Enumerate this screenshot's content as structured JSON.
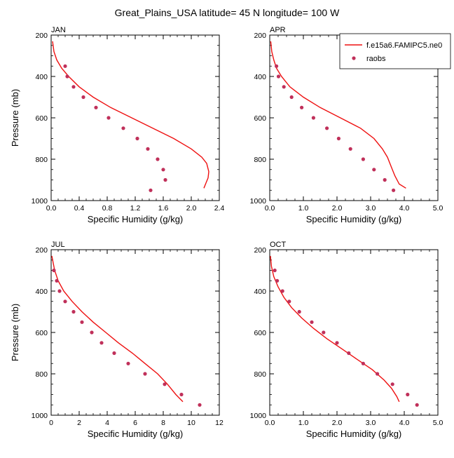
{
  "figure": {
    "title": "Great_Plains_USA  latitude= 45 N longitude= 100 W"
  },
  "legend": {
    "model_label": "f.e15a6.FAMIPC5.ne0",
    "obs_label": "raobs",
    "model_color": "#ee1111",
    "obs_color": "#c0305a"
  },
  "chart_data": [
    {
      "type": "line",
      "title": "JAN",
      "xlabel": "Specific Humidity (g/kg)",
      "ylabel": "Pressure (mb)",
      "xlim": [
        0,
        2.4
      ],
      "ylim": [
        1000,
        200
      ],
      "y_inverted": true,
      "xticks": [
        "0.0",
        "0.4",
        "0.8",
        "1.2",
        "1.6",
        "2.0",
        "2.4"
      ],
      "yticks": [
        "200",
        "400",
        "600",
        "800",
        "1000"
      ],
      "legend": false,
      "series": [
        {
          "name": "f.e15a6.FAMIPC5.ne0",
          "kind": "line",
          "x": [
            0.02,
            0.04,
            0.08,
            0.15,
            0.25,
            0.4,
            0.6,
            0.85,
            1.15,
            1.45,
            1.75,
            2.0,
            2.15,
            2.22,
            2.25,
            2.24,
            2.21,
            2.18
          ],
          "y": [
            230,
            280,
            320,
            360,
            400,
            450,
            500,
            550,
            600,
            650,
            700,
            750,
            790,
            820,
            860,
            890,
            915,
            940
          ]
        },
        {
          "name": "raobs",
          "kind": "scatter",
          "x": [
            0.2,
            0.23,
            0.32,
            0.46,
            0.64,
            0.82,
            1.03,
            1.23,
            1.38,
            1.52,
            1.6,
            1.63,
            1.42
          ],
          "y": [
            350,
            400,
            450,
            500,
            550,
            600,
            650,
            700,
            750,
            800,
            850,
            900,
            950
          ]
        }
      ]
    },
    {
      "type": "line",
      "title": "APR",
      "xlabel": "Specific Humidity (g/kg)",
      "ylabel": "",
      "xlim": [
        0,
        5
      ],
      "ylim": [
        1000,
        200
      ],
      "y_inverted": true,
      "xticks": [
        "0.0",
        "1.0",
        "2.0",
        "3.0",
        "4.0",
        "5.0"
      ],
      "yticks": [
        "200",
        "400",
        "600",
        "800",
        "1000"
      ],
      "legend": true,
      "legend_position": "top-right",
      "series": [
        {
          "name": "f.e15a6.FAMIPC5.ne0",
          "kind": "line",
          "x": [
            0.03,
            0.06,
            0.12,
            0.2,
            0.35,
            0.6,
            1.0,
            1.5,
            2.1,
            2.7,
            3.1,
            3.35,
            3.5,
            3.62,
            3.72,
            3.85,
            4.05
          ],
          "y": [
            230,
            280,
            320,
            360,
            400,
            450,
            500,
            550,
            600,
            650,
            700,
            750,
            790,
            840,
            880,
            920,
            940
          ]
        },
        {
          "name": "raobs",
          "kind": "scatter",
          "x": [
            0.2,
            0.26,
            0.42,
            0.65,
            0.95,
            1.3,
            1.7,
            2.05,
            2.4,
            2.78,
            3.1,
            3.42,
            3.68
          ],
          "y": [
            350,
            400,
            450,
            500,
            550,
            600,
            650,
            700,
            750,
            800,
            850,
            900,
            950
          ]
        }
      ]
    },
    {
      "type": "line",
      "title": "JUL",
      "xlabel": "Specific Humidity (g/kg)",
      "ylabel": "Pressure (mb)",
      "xlim": [
        0,
        12
      ],
      "ylim": [
        1000,
        200
      ],
      "y_inverted": true,
      "xticks": [
        "0",
        "2",
        "4",
        "6",
        "8",
        "10",
        "12"
      ],
      "yticks": [
        "200",
        "400",
        "600",
        "800",
        "1000"
      ],
      "legend": false,
      "series": [
        {
          "name": "f.e15a6.FAMIPC5.ne0",
          "kind": "line",
          "x": [
            0.05,
            0.25,
            0.5,
            0.9,
            1.5,
            2.2,
            3.0,
            3.9,
            4.8,
            5.8,
            6.7,
            7.6,
            8.3,
            8.9,
            9.4
          ],
          "y": [
            230,
            300,
            350,
            400,
            450,
            500,
            550,
            600,
            650,
            700,
            750,
            800,
            850,
            900,
            935
          ]
        },
        {
          "name": "raobs",
          "kind": "scatter",
          "x": [
            0.2,
            0.4,
            0.6,
            1.0,
            1.6,
            2.2,
            2.9,
            3.6,
            4.5,
            5.5,
            6.7,
            8.1,
            9.3,
            10.6
          ],
          "y": [
            300,
            350,
            400,
            450,
            500,
            550,
            600,
            650,
            700,
            750,
            800,
            850,
            900,
            950
          ]
        }
      ]
    },
    {
      "type": "line",
      "title": "OCT",
      "xlabel": "Specific Humidity (g/kg)",
      "ylabel": "",
      "xlim": [
        0,
        5
      ],
      "ylim": [
        1000,
        200
      ],
      "y_inverted": true,
      "xticks": [
        "0.0",
        "1.0",
        "2.0",
        "3.0",
        "4.0",
        "5.0"
      ],
      "yticks": [
        "200",
        "400",
        "600",
        "800",
        "1000"
      ],
      "legend": false,
      "series": [
        {
          "name": "f.e15a6.FAMIPC5.ne0",
          "kind": "line",
          "x": [
            0.02,
            0.05,
            0.12,
            0.25,
            0.42,
            0.65,
            0.95,
            1.3,
            1.7,
            2.15,
            2.6,
            3.05,
            3.4,
            3.62,
            3.78,
            3.85
          ],
          "y": [
            230,
            280,
            330,
            380,
            430,
            480,
            530,
            580,
            630,
            680,
            730,
            780,
            830,
            870,
            910,
            935
          ]
        },
        {
          "name": "raobs",
          "kind": "scatter",
          "x": [
            0.15,
            0.22,
            0.38,
            0.58,
            0.88,
            1.25,
            1.6,
            2.0,
            2.35,
            2.78,
            3.2,
            3.65,
            4.1,
            4.38
          ],
          "y": [
            300,
            350,
            400,
            450,
            500,
            550,
            600,
            650,
            700,
            750,
            800,
            850,
            900,
            950
          ]
        }
      ]
    }
  ]
}
